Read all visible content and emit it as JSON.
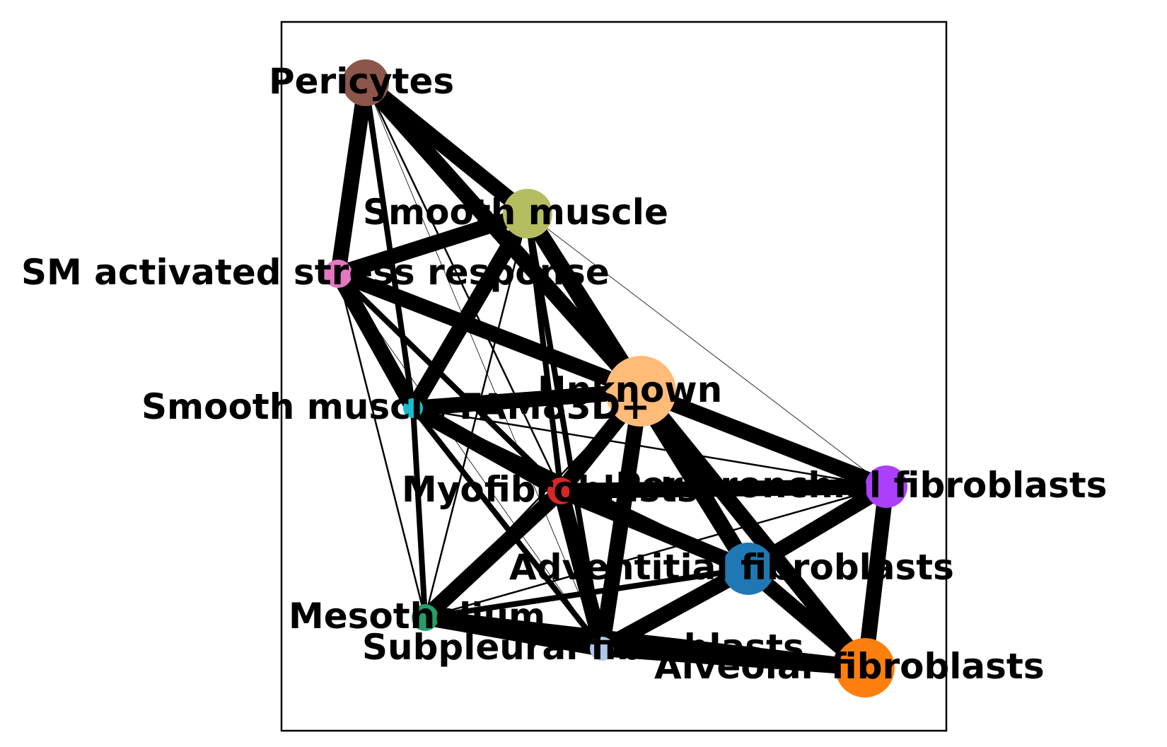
{
  "nodes": [
    {
      "id": "pericytes",
      "label": "Pericytes",
      "color": "#8c564b"
    },
    {
      "id": "smooth_muscle",
      "label": "Smooth muscle",
      "color": "#b5bd61"
    },
    {
      "id": "sm_stress",
      "label": "SM activated stress response",
      "color": "#e377c2"
    },
    {
      "id": "sm_fam83d",
      "label": "Smooth muscle FAM83D+",
      "color": "#17becf"
    },
    {
      "id": "unknown",
      "label": "Unknown",
      "color": "#ffbb78"
    },
    {
      "id": "myofibroblasts",
      "label": "Myofibroblasts",
      "color": "#d62728"
    },
    {
      "id": "peribronchial",
      "label": "Peribronchial fibroblasts",
      "color": "#aa40fc"
    },
    {
      "id": "adventitial",
      "label": "Adventitial fibroblasts",
      "color": "#1f77b4"
    },
    {
      "id": "mesothelium",
      "label": "Mesothelium",
      "color": "#279e68"
    },
    {
      "id": "subpleural",
      "label": "Subpleural fibroblasts",
      "color": "#aec7e8"
    },
    {
      "id": "alveolar",
      "label": "Alveolar fibroblasts",
      "color": "#ff7f0e"
    }
  ],
  "edges": [
    [
      "pericytes",
      "smooth_muscle",
      "heavy"
    ],
    [
      "pericytes",
      "sm_stress",
      "heavy"
    ],
    [
      "pericytes",
      "unknown",
      "heavy"
    ],
    [
      "pericytes",
      "sm_fam83d",
      "medium"
    ],
    [
      "pericytes",
      "myofibroblasts",
      "thin"
    ],
    [
      "pericytes",
      "subpleural",
      "faint"
    ],
    [
      "smooth_muscle",
      "sm_stress",
      "heavy"
    ],
    [
      "smooth_muscle",
      "sm_fam83d",
      "heavy"
    ],
    [
      "smooth_muscle",
      "unknown",
      "heavy"
    ],
    [
      "smooth_muscle",
      "subpleural",
      "medium"
    ],
    [
      "smooth_muscle",
      "adventitial",
      "heavy"
    ],
    [
      "smooth_muscle",
      "mesothelium",
      "thin"
    ],
    [
      "smooth_muscle",
      "peribronchial",
      "faint"
    ],
    [
      "sm_stress",
      "unknown",
      "heavy"
    ],
    [
      "sm_stress",
      "sm_fam83d",
      "heavy"
    ],
    [
      "sm_stress",
      "myofibroblasts",
      "medium"
    ],
    [
      "sm_stress",
      "mesothelium",
      "thin"
    ],
    [
      "sm_stress",
      "subpleural",
      "faint"
    ],
    [
      "sm_fam83d",
      "unknown",
      "heavy"
    ],
    [
      "sm_fam83d",
      "myofibroblasts",
      "heavy"
    ],
    [
      "sm_fam83d",
      "subpleural",
      "medium"
    ],
    [
      "sm_fam83d",
      "mesothelium",
      "medium"
    ],
    [
      "sm_fam83d",
      "peribronchial",
      "thin"
    ],
    [
      "sm_fam83d",
      "adventitial",
      "medium"
    ],
    [
      "unknown",
      "myofibroblasts",
      "heavy"
    ],
    [
      "unknown",
      "subpleural",
      "heavy"
    ],
    [
      "unknown",
      "peribronchial",
      "heavy"
    ],
    [
      "unknown",
      "adventitial",
      "heavy"
    ],
    [
      "unknown",
      "alveolar",
      "heavy"
    ],
    [
      "unknown",
      "mesothelium",
      "thin"
    ],
    [
      "unknown",
      "pericytes",
      "faint"
    ],
    [
      "myofibroblasts",
      "mesothelium",
      "heavy"
    ],
    [
      "myofibroblasts",
      "subpleural",
      "heavy"
    ],
    [
      "myofibroblasts",
      "peribronchial",
      "heavy"
    ],
    [
      "myofibroblasts",
      "adventitial",
      "heavy"
    ],
    [
      "myofibroblasts",
      "smooth_muscle",
      "medium"
    ],
    [
      "peribronchial",
      "adventitial",
      "heavy"
    ],
    [
      "peribronchial",
      "alveolar",
      "heavy"
    ],
    [
      "peribronchial",
      "subpleural",
      "medium"
    ],
    [
      "peribronchial",
      "mesothelium",
      "thin"
    ],
    [
      "adventitial",
      "alveolar",
      "heavy"
    ],
    [
      "adventitial",
      "subpleural",
      "heavy"
    ],
    [
      "adventitial",
      "mesothelium",
      "medium"
    ],
    [
      "mesothelium",
      "subpleural",
      "heavy"
    ],
    [
      "mesothelium",
      "alveolar",
      "heavy"
    ],
    [
      "subpleural",
      "alveolar",
      "heavy"
    ]
  ]
}
